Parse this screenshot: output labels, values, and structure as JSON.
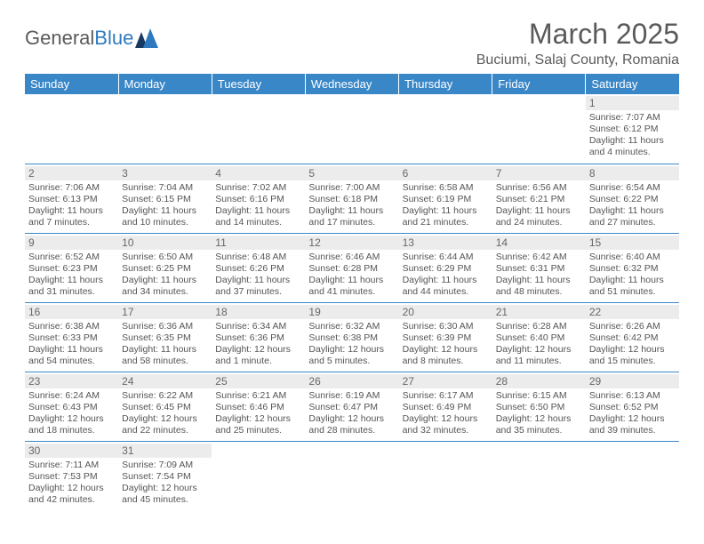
{
  "brand": {
    "part1": "General",
    "part2": "Blue"
  },
  "title": "March 2025",
  "location": "Buciumi, Salaj County, Romania",
  "header_bg": "#3a87c7",
  "header_fg": "#ffffff",
  "divider_color": "#3a87c7",
  "daynum_bg": "#ececec",
  "text_color": "#555555",
  "weekdays": [
    "Sunday",
    "Monday",
    "Tuesday",
    "Wednesday",
    "Thursday",
    "Friday",
    "Saturday"
  ],
  "weeks": [
    [
      {
        "n": "",
        "sr": "",
        "ss": "",
        "dl1": "",
        "dl2": ""
      },
      {
        "n": "",
        "sr": "",
        "ss": "",
        "dl1": "",
        "dl2": ""
      },
      {
        "n": "",
        "sr": "",
        "ss": "",
        "dl1": "",
        "dl2": ""
      },
      {
        "n": "",
        "sr": "",
        "ss": "",
        "dl1": "",
        "dl2": ""
      },
      {
        "n": "",
        "sr": "",
        "ss": "",
        "dl1": "",
        "dl2": ""
      },
      {
        "n": "",
        "sr": "",
        "ss": "",
        "dl1": "",
        "dl2": ""
      },
      {
        "n": "1",
        "sr": "Sunrise: 7:07 AM",
        "ss": "Sunset: 6:12 PM",
        "dl1": "Daylight: 11 hours",
        "dl2": "and 4 minutes."
      }
    ],
    [
      {
        "n": "2",
        "sr": "Sunrise: 7:06 AM",
        "ss": "Sunset: 6:13 PM",
        "dl1": "Daylight: 11 hours",
        "dl2": "and 7 minutes."
      },
      {
        "n": "3",
        "sr": "Sunrise: 7:04 AM",
        "ss": "Sunset: 6:15 PM",
        "dl1": "Daylight: 11 hours",
        "dl2": "and 10 minutes."
      },
      {
        "n": "4",
        "sr": "Sunrise: 7:02 AM",
        "ss": "Sunset: 6:16 PM",
        "dl1": "Daylight: 11 hours",
        "dl2": "and 14 minutes."
      },
      {
        "n": "5",
        "sr": "Sunrise: 7:00 AM",
        "ss": "Sunset: 6:18 PM",
        "dl1": "Daylight: 11 hours",
        "dl2": "and 17 minutes."
      },
      {
        "n": "6",
        "sr": "Sunrise: 6:58 AM",
        "ss": "Sunset: 6:19 PM",
        "dl1": "Daylight: 11 hours",
        "dl2": "and 21 minutes."
      },
      {
        "n": "7",
        "sr": "Sunrise: 6:56 AM",
        "ss": "Sunset: 6:21 PM",
        "dl1": "Daylight: 11 hours",
        "dl2": "and 24 minutes."
      },
      {
        "n": "8",
        "sr": "Sunrise: 6:54 AM",
        "ss": "Sunset: 6:22 PM",
        "dl1": "Daylight: 11 hours",
        "dl2": "and 27 minutes."
      }
    ],
    [
      {
        "n": "9",
        "sr": "Sunrise: 6:52 AM",
        "ss": "Sunset: 6:23 PM",
        "dl1": "Daylight: 11 hours",
        "dl2": "and 31 minutes."
      },
      {
        "n": "10",
        "sr": "Sunrise: 6:50 AM",
        "ss": "Sunset: 6:25 PM",
        "dl1": "Daylight: 11 hours",
        "dl2": "and 34 minutes."
      },
      {
        "n": "11",
        "sr": "Sunrise: 6:48 AM",
        "ss": "Sunset: 6:26 PM",
        "dl1": "Daylight: 11 hours",
        "dl2": "and 37 minutes."
      },
      {
        "n": "12",
        "sr": "Sunrise: 6:46 AM",
        "ss": "Sunset: 6:28 PM",
        "dl1": "Daylight: 11 hours",
        "dl2": "and 41 minutes."
      },
      {
        "n": "13",
        "sr": "Sunrise: 6:44 AM",
        "ss": "Sunset: 6:29 PM",
        "dl1": "Daylight: 11 hours",
        "dl2": "and 44 minutes."
      },
      {
        "n": "14",
        "sr": "Sunrise: 6:42 AM",
        "ss": "Sunset: 6:31 PM",
        "dl1": "Daylight: 11 hours",
        "dl2": "and 48 minutes."
      },
      {
        "n": "15",
        "sr": "Sunrise: 6:40 AM",
        "ss": "Sunset: 6:32 PM",
        "dl1": "Daylight: 11 hours",
        "dl2": "and 51 minutes."
      }
    ],
    [
      {
        "n": "16",
        "sr": "Sunrise: 6:38 AM",
        "ss": "Sunset: 6:33 PM",
        "dl1": "Daylight: 11 hours",
        "dl2": "and 54 minutes."
      },
      {
        "n": "17",
        "sr": "Sunrise: 6:36 AM",
        "ss": "Sunset: 6:35 PM",
        "dl1": "Daylight: 11 hours",
        "dl2": "and 58 minutes."
      },
      {
        "n": "18",
        "sr": "Sunrise: 6:34 AM",
        "ss": "Sunset: 6:36 PM",
        "dl1": "Daylight: 12 hours",
        "dl2": "and 1 minute."
      },
      {
        "n": "19",
        "sr": "Sunrise: 6:32 AM",
        "ss": "Sunset: 6:38 PM",
        "dl1": "Daylight: 12 hours",
        "dl2": "and 5 minutes."
      },
      {
        "n": "20",
        "sr": "Sunrise: 6:30 AM",
        "ss": "Sunset: 6:39 PM",
        "dl1": "Daylight: 12 hours",
        "dl2": "and 8 minutes."
      },
      {
        "n": "21",
        "sr": "Sunrise: 6:28 AM",
        "ss": "Sunset: 6:40 PM",
        "dl1": "Daylight: 12 hours",
        "dl2": "and 11 minutes."
      },
      {
        "n": "22",
        "sr": "Sunrise: 6:26 AM",
        "ss": "Sunset: 6:42 PM",
        "dl1": "Daylight: 12 hours",
        "dl2": "and 15 minutes."
      }
    ],
    [
      {
        "n": "23",
        "sr": "Sunrise: 6:24 AM",
        "ss": "Sunset: 6:43 PM",
        "dl1": "Daylight: 12 hours",
        "dl2": "and 18 minutes."
      },
      {
        "n": "24",
        "sr": "Sunrise: 6:22 AM",
        "ss": "Sunset: 6:45 PM",
        "dl1": "Daylight: 12 hours",
        "dl2": "and 22 minutes."
      },
      {
        "n": "25",
        "sr": "Sunrise: 6:21 AM",
        "ss": "Sunset: 6:46 PM",
        "dl1": "Daylight: 12 hours",
        "dl2": "and 25 minutes."
      },
      {
        "n": "26",
        "sr": "Sunrise: 6:19 AM",
        "ss": "Sunset: 6:47 PM",
        "dl1": "Daylight: 12 hours",
        "dl2": "and 28 minutes."
      },
      {
        "n": "27",
        "sr": "Sunrise: 6:17 AM",
        "ss": "Sunset: 6:49 PM",
        "dl1": "Daylight: 12 hours",
        "dl2": "and 32 minutes."
      },
      {
        "n": "28",
        "sr": "Sunrise: 6:15 AM",
        "ss": "Sunset: 6:50 PM",
        "dl1": "Daylight: 12 hours",
        "dl2": "and 35 minutes."
      },
      {
        "n": "29",
        "sr": "Sunrise: 6:13 AM",
        "ss": "Sunset: 6:52 PM",
        "dl1": "Daylight: 12 hours",
        "dl2": "and 39 minutes."
      }
    ],
    [
      {
        "n": "30",
        "sr": "Sunrise: 7:11 AM",
        "ss": "Sunset: 7:53 PM",
        "dl1": "Daylight: 12 hours",
        "dl2": "and 42 minutes."
      },
      {
        "n": "31",
        "sr": "Sunrise: 7:09 AM",
        "ss": "Sunset: 7:54 PM",
        "dl1": "Daylight: 12 hours",
        "dl2": "and 45 minutes."
      },
      {
        "n": "",
        "sr": "",
        "ss": "",
        "dl1": "",
        "dl2": ""
      },
      {
        "n": "",
        "sr": "",
        "ss": "",
        "dl1": "",
        "dl2": ""
      },
      {
        "n": "",
        "sr": "",
        "ss": "",
        "dl1": "",
        "dl2": ""
      },
      {
        "n": "",
        "sr": "",
        "ss": "",
        "dl1": "",
        "dl2": ""
      },
      {
        "n": "",
        "sr": "",
        "ss": "",
        "dl1": "",
        "dl2": ""
      }
    ]
  ]
}
